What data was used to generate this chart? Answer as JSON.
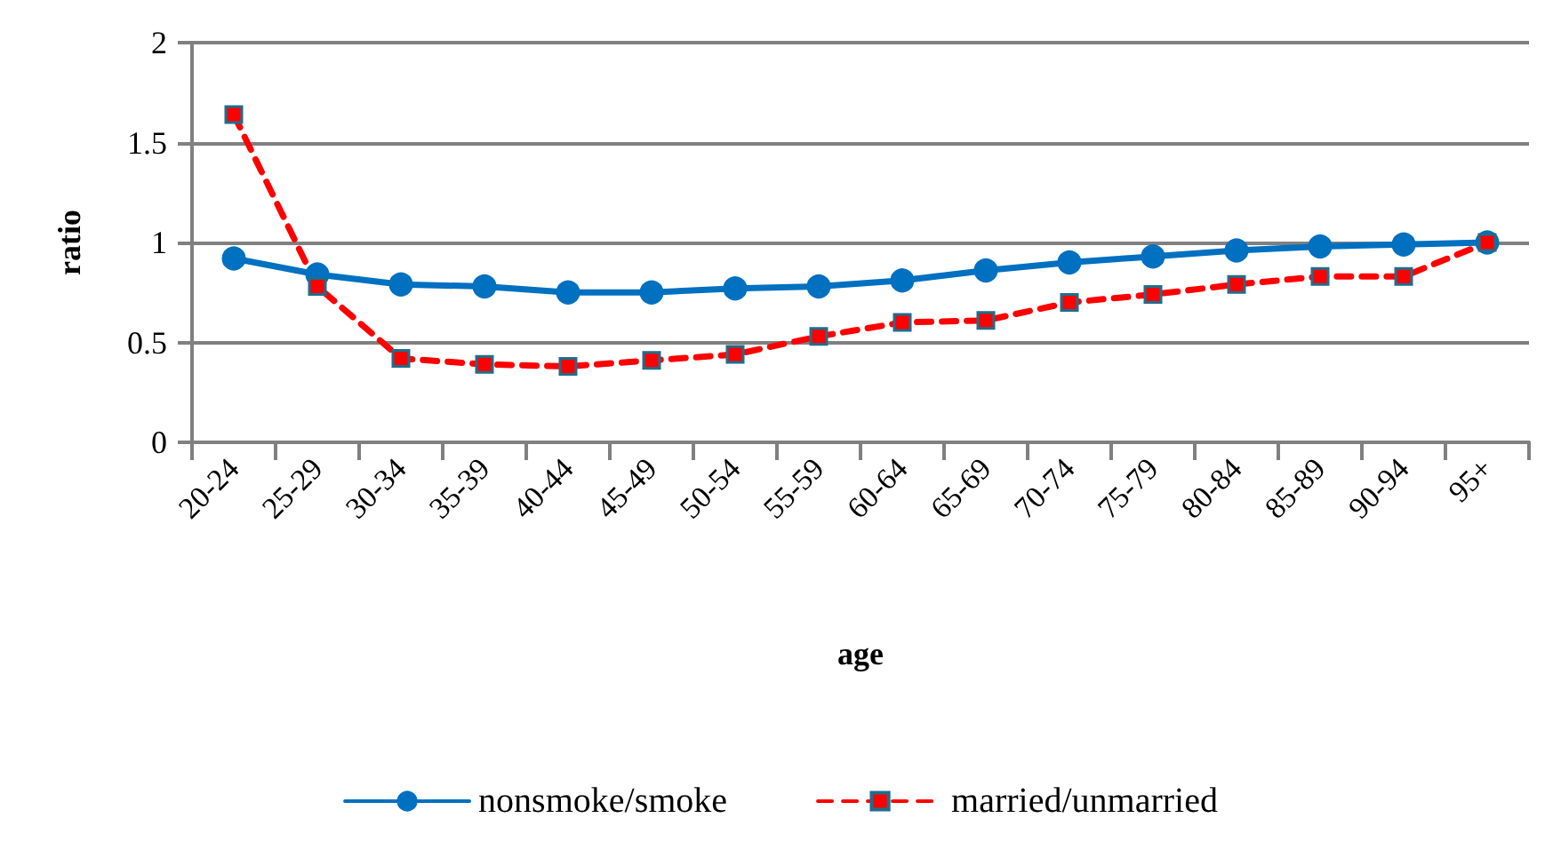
{
  "chart_data": {
    "type": "line",
    "xlabel": "age",
    "ylabel": "ratio",
    "categories": [
      "20-24",
      "25-29",
      "30-34",
      "35-39",
      "40-44",
      "45-49",
      "50-54",
      "55-59",
      "60-64",
      "65-69",
      "70-74",
      "75-79",
      "80-84",
      "85-89",
      "90-94",
      "95+"
    ],
    "series": [
      {
        "name": "nonsmoke/smoke",
        "color": "#0070c0",
        "marker": "circle",
        "line_style": "solid",
        "values": [
          0.92,
          0.84,
          0.79,
          0.78,
          0.75,
          0.75,
          0.77,
          0.78,
          0.81,
          0.86,
          0.9,
          0.93,
          0.96,
          0.98,
          0.99,
          1.0
        ]
      },
      {
        "name": "married/unmarried",
        "color": "#ff0000",
        "marker": "square",
        "line_style": "dashed",
        "values": [
          1.64,
          0.78,
          0.42,
          0.39,
          0.38,
          0.41,
          0.44,
          0.53,
          0.6,
          0.61,
          0.7,
          0.74,
          0.79,
          0.83,
          0.83,
          1.0
        ]
      }
    ],
    "ylim": [
      0,
      2
    ],
    "yticks": [
      0,
      0.5,
      1,
      1.5,
      2
    ],
    "grid": "y",
    "legend": "bottom"
  }
}
